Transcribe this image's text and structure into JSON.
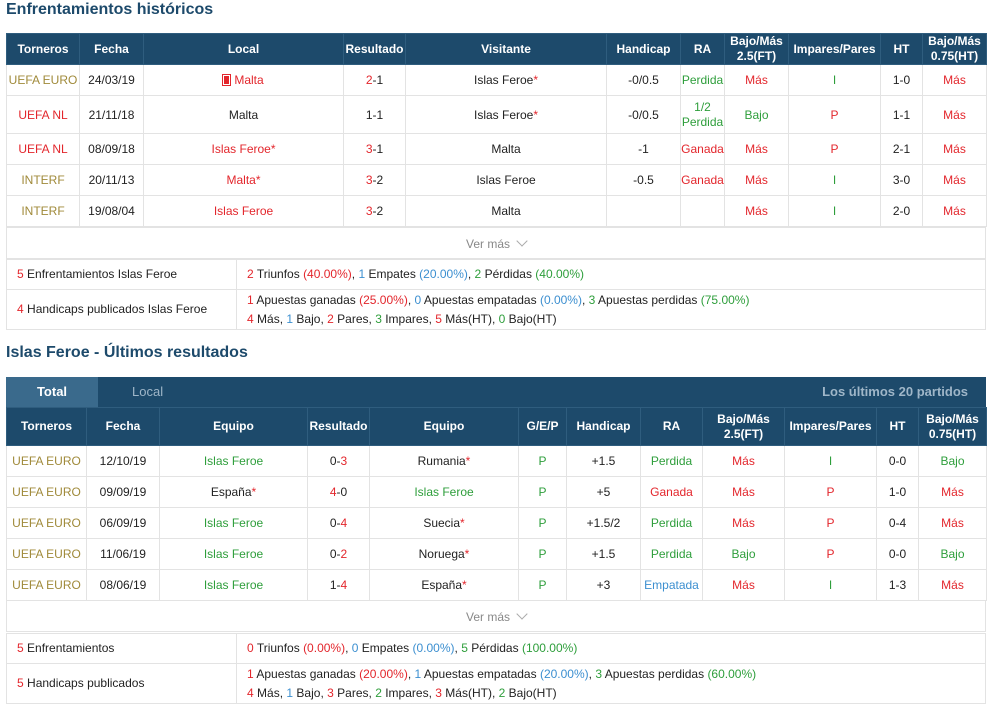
{
  "hist": {
    "title": "Enfrentamientos históricos",
    "headers": [
      "Torneros",
      "Fecha",
      "Local",
      "Resultado",
      "Visitante",
      "Handicap",
      "RA",
      "Bajo/Más 2.5(FT)",
      "Impares/Pares",
      "HT",
      "Bajo/Más 0.75(HT)"
    ],
    "rows": [
      {
        "torneo": "UEFA EURO",
        "fecha": "24/03/19",
        "local": "Malta",
        "res_a": "2",
        "res_b": "1",
        "visitante": "Islas Feroe",
        "hcp": "-0/0.5",
        "ra": "Perdida",
        "bm": "Más",
        "ip": "I",
        "ht": "1-0",
        "bm2": "Más"
      },
      {
        "torneo": "UEFA NL",
        "fecha": "21/11/18",
        "local": "Malta",
        "res_a": "1",
        "res_b": "1",
        "visitante": "Islas Feroe",
        "hcp": "-0/0.5",
        "ra": "1/2 Perdida",
        "bm": "Bajo",
        "ip": "P",
        "ht": "1-1",
        "bm2": "Más"
      },
      {
        "torneo": "UEFA NL",
        "fecha": "08/09/18",
        "local": "Islas Feroe",
        "res_a": "3",
        "res_b": "1",
        "visitante": "Malta",
        "hcp": "-1",
        "ra": "Ganada",
        "bm": "Más",
        "ip": "P",
        "ht": "2-1",
        "bm2": "Más"
      },
      {
        "torneo": "INTERF",
        "fecha": "20/11/13",
        "local": "Malta",
        "res_a": "3",
        "res_b": "2",
        "visitante": "Islas Feroe",
        "hcp": "-0.5",
        "ra": "Ganada",
        "bm": "Más",
        "ip": "I",
        "ht": "3-0",
        "bm2": "Más"
      },
      {
        "torneo": "INTERF",
        "fecha": "19/08/04",
        "local": "Islas Feroe",
        "res_a": "3",
        "res_b": "2",
        "visitante": "Malta",
        "hcp": "",
        "ra": "",
        "bm": "Más",
        "ip": "I",
        "ht": "2-0",
        "bm2": "Más"
      }
    ],
    "ver_mas": "Ver más",
    "summary1": {
      "label_num": "5",
      "label": "Enfrentamientos Islas Feroe",
      "w": "2",
      "w_txt": "Triunfos",
      "w_pct": "(40.00%)",
      "d": "1",
      "d_txt": "Empates",
      "d_pct": "(20.00%)",
      "l": "2",
      "l_txt": "Pérdidas",
      "l_pct": "(40.00%)"
    },
    "summary2": {
      "label_num": "4",
      "label": "Handicaps publicados Islas Feroe",
      "g": "1",
      "g_txt": "Apuestas ganadas",
      "g_pct": "(25.00%)",
      "e": "0",
      "e_txt": "Apuestas empatadas",
      "e_pct": "(0.00%)",
      "p": "3",
      "p_txt": "Apuestas perdidas",
      "p_pct": "(75.00%)",
      "mas": "4",
      "mas_txt": "Más,",
      "bajo": "1",
      "bajo_txt": "Bajo,",
      "pares": "2",
      "pares_txt": "Pares,",
      "impares": "3",
      "impares_txt": "Impares,",
      "masht": "5",
      "masht_txt": "Más(HT),",
      "bajoht": "0",
      "bajoht_txt": "Bajo(HT)"
    }
  },
  "last": {
    "title": "Islas Feroe - Últimos resultados",
    "tab_total": "Total",
    "tab_local": "Local",
    "tab_right": "Los últimos 20 partidos",
    "headers": [
      "Torneros",
      "Fecha",
      "Equipo",
      "Resultado",
      "Equipo",
      "G/E/P",
      "Handicap",
      "RA",
      "Bajo/Más 2.5(FT)",
      "Impares/Pares",
      "HT",
      "Bajo/Más 0.75(HT)"
    ],
    "rows": [
      {
        "torneo": "UEFA EURO",
        "fecha": "12/10/19",
        "eq1": "Islas Feroe",
        "res_a": "0",
        "res_b": "3",
        "eq2": "Rumania",
        "gep": "P",
        "hcp": "+1.5",
        "ra": "Perdida",
        "bm": "Más",
        "ip": "I",
        "ht": "0-0",
        "bm2": "Bajo"
      },
      {
        "torneo": "UEFA EURO",
        "fecha": "09/09/19",
        "eq1": "España",
        "res_a": "4",
        "res_b": "0",
        "eq2": "Islas Feroe",
        "gep": "P",
        "hcp": "+5",
        "ra": "Ganada",
        "bm": "Más",
        "ip": "P",
        "ht": "1-0",
        "bm2": "Más"
      },
      {
        "torneo": "UEFA EURO",
        "fecha": "06/09/19",
        "eq1": "Islas Feroe",
        "res_a": "0",
        "res_b": "4",
        "eq2": "Suecia",
        "gep": "P",
        "hcp": "+1.5/2",
        "ra": "Perdida",
        "bm": "Más",
        "ip": "P",
        "ht": "0-4",
        "bm2": "Más"
      },
      {
        "torneo": "UEFA EURO",
        "fecha": "11/06/19",
        "eq1": "Islas Feroe",
        "res_a": "0",
        "res_b": "2",
        "eq2": "Noruega",
        "gep": "P",
        "hcp": "+1.5",
        "ra": "Perdida",
        "bm": "Bajo",
        "ip": "P",
        "ht": "0-0",
        "bm2": "Bajo"
      },
      {
        "torneo": "UEFA EURO",
        "fecha": "08/06/19",
        "eq1": "Islas Feroe",
        "res_a": "1",
        "res_b": "4",
        "eq2": "España",
        "gep": "P",
        "hcp": "+3",
        "ra": "Empatada",
        "bm": "Más",
        "ip": "I",
        "ht": "1-3",
        "bm2": "Más"
      }
    ],
    "ver_mas": "Ver más",
    "summary1": {
      "label_num": "5",
      "label": "Enfrentamientos",
      "w": "0",
      "w_txt": "Triunfos",
      "w_pct": "(0.00%)",
      "d": "0",
      "d_txt": "Empates",
      "d_pct": "(0.00%)",
      "l": "5",
      "l_txt": "Pérdidas",
      "l_pct": "(100.00%)"
    },
    "summary2": {
      "label_num": "5",
      "label": "Handicaps publicados",
      "g": "1",
      "g_txt": "Apuestas ganadas",
      "g_pct": "(20.00%)",
      "e": "1",
      "e_txt": "Apuestas empatadas",
      "e_pct": "(20.00%)",
      "p": "3",
      "p_txt": "Apuestas perdidas",
      "p_pct": "(60.00%)",
      "mas": "4",
      "mas_txt": "Más,",
      "bajo": "1",
      "bajo_txt": "Bajo,",
      "pares": "3",
      "pares_txt": "Pares,",
      "impares": "2",
      "impares_txt": "Impares,",
      "masht": "3",
      "masht_txt": "Más(HT),",
      "bajoht": "2",
      "bajoht_txt": "Bajo(HT)"
    }
  },
  "star": "*"
}
